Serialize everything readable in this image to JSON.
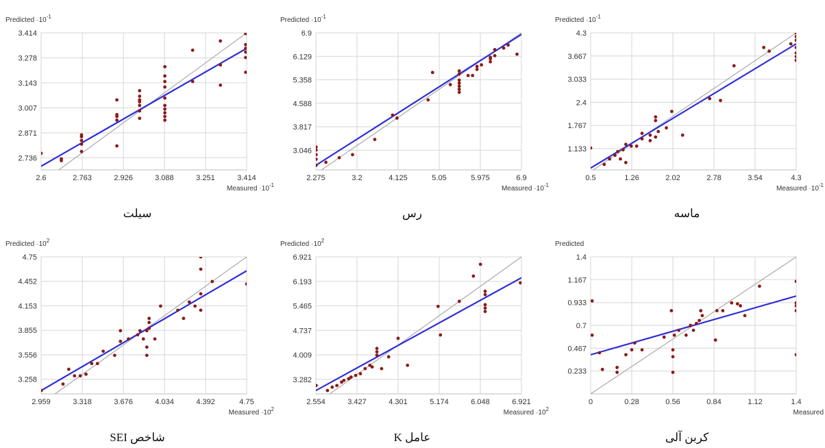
{
  "chart_data": [
    {
      "type": "scatter",
      "caption": "سیلت",
      "xlabel": "Measured",
      "xlabel_exp": "-1",
      "ylabel": "Predicted",
      "ylabel_exp": "-1",
      "xlim": [
        2.6,
        3.414
      ],
      "ylim": [
        2.67,
        3.414
      ],
      "x_ticks": [
        2.6,
        2.763,
        2.926,
        3.088,
        3.251,
        3.414
      ],
      "x_tick_labels": [
        "2.6",
        "2.763",
        "2.926",
        "3.088",
        "3.251",
        "3.414"
      ],
      "y_ticks": [
        2.736,
        2.871,
        3.007,
        3.143,
        3.278,
        3.414
      ],
      "y_tick_labels": [
        "2.736",
        "2.871",
        "3.007",
        "3.143",
        "3.278",
        "3.414"
      ],
      "fit_line": [
        [
          2.6,
          2.69
        ],
        [
          3.414,
          3.33
        ]
      ],
      "points": [
        [
          2.6,
          2.76
        ],
        [
          2.68,
          2.72
        ],
        [
          2.68,
          2.73
        ],
        [
          2.76,
          2.77
        ],
        [
          2.76,
          2.81
        ],
        [
          2.76,
          2.83
        ],
        [
          2.76,
          2.85
        ],
        [
          2.76,
          2.86
        ],
        [
          2.9,
          2.8
        ],
        [
          2.9,
          2.94
        ],
        [
          2.9,
          2.96
        ],
        [
          2.9,
          2.97
        ],
        [
          2.9,
          3.05
        ],
        [
          2.99,
          2.95
        ],
        [
          2.99,
          2.99
        ],
        [
          2.99,
          3.02
        ],
        [
          2.99,
          3.04
        ],
        [
          2.99,
          3.05
        ],
        [
          2.99,
          3.07
        ],
        [
          2.99,
          3.1
        ],
        [
          3.09,
          2.94
        ],
        [
          3.09,
          2.96
        ],
        [
          3.09,
          2.98
        ],
        [
          3.09,
          3.0
        ],
        [
          3.09,
          3.02
        ],
        [
          3.09,
          3.06
        ],
        [
          3.09,
          3.12
        ],
        [
          3.09,
          3.15
        ],
        [
          3.09,
          3.18
        ],
        [
          3.09,
          3.23
        ],
        [
          3.2,
          3.15
        ],
        [
          3.2,
          3.32
        ],
        [
          3.31,
          3.13
        ],
        [
          3.31,
          3.24
        ],
        [
          3.31,
          3.37
        ],
        [
          3.41,
          3.2
        ],
        [
          3.41,
          3.28
        ],
        [
          3.41,
          3.31
        ],
        [
          3.41,
          3.33
        ],
        [
          3.41,
          3.35
        ],
        [
          3.41,
          3.41
        ]
      ]
    },
    {
      "type": "scatter",
      "caption": "رس",
      "xlabel": "Measured",
      "xlabel_exp": "-1",
      "ylabel": "Predicted",
      "ylabel_exp": "-1",
      "xlim": [
        2.275,
        6.9
      ],
      "ylim": [
        2.4,
        6.9
      ],
      "x_ticks": [
        2.275,
        3.2,
        4.125,
        5.05,
        5.975,
        6.9
      ],
      "x_tick_labels": [
        "2.275",
        "3.2",
        "4.125",
        "5.05",
        "5.975",
        "6.9"
      ],
      "y_ticks": [
        3.046,
        3.817,
        4.588,
        5.358,
        6.129,
        6.9
      ],
      "y_tick_labels": [
        "3.046",
        "3.817",
        "4.588",
        "5.358",
        "6.129",
        "6.9"
      ],
      "fit_line": [
        [
          2.275,
          2.55
        ],
        [
          6.9,
          6.85
        ]
      ],
      "points": [
        [
          2.28,
          2.55
        ],
        [
          2.28,
          2.75
        ],
        [
          2.28,
          2.9
        ],
        [
          2.28,
          3.05
        ],
        [
          2.28,
          3.15
        ],
        [
          2.5,
          2.65
        ],
        [
          2.8,
          2.8
        ],
        [
          3.1,
          2.9
        ],
        [
          3.6,
          3.4
        ],
        [
          4.0,
          4.2
        ],
        [
          4.1,
          4.1
        ],
        [
          4.8,
          4.7
        ],
        [
          4.9,
          5.6
        ],
        [
          5.3,
          5.2
        ],
        [
          5.5,
          4.95
        ],
        [
          5.5,
          5.05
        ],
        [
          5.5,
          5.15
        ],
        [
          5.5,
          5.25
        ],
        [
          5.5,
          5.35
        ],
        [
          5.5,
          5.55
        ],
        [
          5.5,
          5.65
        ],
        [
          5.7,
          5.5
        ],
        [
          5.8,
          5.5
        ],
        [
          5.9,
          5.7
        ],
        [
          5.9,
          5.8
        ],
        [
          6.0,
          5.85
        ],
        [
          6.2,
          5.95
        ],
        [
          6.2,
          6.05
        ],
        [
          6.2,
          6.1
        ],
        [
          6.3,
          6.15
        ],
        [
          6.3,
          6.35
        ],
        [
          6.5,
          6.4
        ],
        [
          6.6,
          6.5
        ],
        [
          6.8,
          6.2
        ]
      ]
    },
    {
      "type": "scatter",
      "caption": "ماسه",
      "xlabel": "Measured",
      "xlabel_exp": "-1",
      "ylabel": "Predicted",
      "ylabel_exp": "-1",
      "xlim": [
        0.5,
        4.3
      ],
      "ylim": [
        0.55,
        4.3
      ],
      "x_ticks": [
        0.5,
        1.26,
        2.02,
        2.78,
        3.54,
        4.3
      ],
      "x_tick_labels": [
        "0.5",
        "1.26",
        "2.02",
        "2.78",
        "3.54",
        "4.3"
      ],
      "y_ticks": [
        1.133,
        1.767,
        2.4,
        3.033,
        3.667,
        4.3
      ],
      "y_tick_labels": [
        "1.133",
        "1.767",
        "2.4",
        "3.033",
        "3.667",
        "4.3"
      ],
      "fit_line": [
        [
          0.5,
          0.6
        ],
        [
          4.3,
          4.0
        ]
      ],
      "points": [
        [
          0.5,
          1.15
        ],
        [
          0.75,
          0.7
        ],
        [
          0.85,
          0.85
        ],
        [
          0.95,
          0.95
        ],
        [
          1.0,
          1.05
        ],
        [
          1.05,
          0.85
        ],
        [
          1.1,
          1.1
        ],
        [
          1.15,
          1.25
        ],
        [
          1.15,
          0.75
        ],
        [
          1.25,
          1.2
        ],
        [
          1.35,
          1.2
        ],
        [
          1.45,
          1.4
        ],
        [
          1.45,
          1.55
        ],
        [
          1.6,
          1.35
        ],
        [
          1.6,
          1.5
        ],
        [
          1.7,
          1.45
        ],
        [
          1.7,
          1.9
        ],
        [
          1.7,
          2.0
        ],
        [
          1.75,
          1.6
        ],
        [
          1.9,
          1.7
        ],
        [
          2.0,
          2.15
        ],
        [
          2.2,
          1.5
        ],
        [
          2.7,
          2.5
        ],
        [
          2.9,
          2.45
        ],
        [
          3.15,
          3.4
        ],
        [
          3.7,
          3.9
        ],
        [
          3.8,
          3.8
        ],
        [
          4.2,
          4.0
        ],
        [
          4.3,
          3.55
        ],
        [
          4.3,
          3.65
        ],
        [
          4.3,
          3.75
        ],
        [
          4.3,
          3.9
        ],
        [
          4.3,
          4.1
        ],
        [
          4.3,
          4.2
        ],
        [
          4.3,
          4.3
        ]
      ]
    },
    {
      "type": "scatter",
      "caption": "شاخص SEI",
      "xlabel": "Measured",
      "xlabel_exp": "2",
      "ylabel": "Predicted",
      "ylabel_exp": "2",
      "xlim": [
        2.959,
        4.75
      ],
      "ylim": [
        3.08,
        4.75
      ],
      "x_ticks": [
        2.959,
        3.318,
        3.676,
        4.034,
        4.392,
        4.75
      ],
      "x_tick_labels": [
        "2.959",
        "3.318",
        "3.676",
        "4.034",
        "4.392",
        "4.75"
      ],
      "y_ticks": [
        3.258,
        3.556,
        3.855,
        4.153,
        4.452,
        4.75
      ],
      "y_tick_labels": [
        "3.258",
        "3.556",
        "3.855",
        "4.153",
        "4.452",
        "4.75"
      ],
      "fit_line": [
        [
          2.959,
          3.12
        ],
        [
          4.75,
          4.58
        ]
      ],
      "points": [
        [
          2.96,
          3.12
        ],
        [
          3.15,
          3.2
        ],
        [
          3.2,
          3.38
        ],
        [
          3.25,
          3.3
        ],
        [
          3.3,
          3.3
        ],
        [
          3.35,
          3.32
        ],
        [
          3.4,
          3.45
        ],
        [
          3.45,
          3.45
        ],
        [
          3.5,
          3.6
        ],
        [
          3.6,
          3.55
        ],
        [
          3.65,
          3.72
        ],
        [
          3.65,
          3.85
        ],
        [
          3.72,
          3.75
        ],
        [
          3.8,
          3.8
        ],
        [
          3.82,
          3.85
        ],
        [
          3.85,
          3.75
        ],
        [
          3.88,
          3.55
        ],
        [
          3.88,
          3.65
        ],
        [
          3.88,
          3.85
        ],
        [
          3.9,
          3.88
        ],
        [
          3.9,
          3.95
        ],
        [
          3.9,
          4.0
        ],
        [
          3.95,
          3.75
        ],
        [
          4.0,
          4.15
        ],
        [
          4.15,
          4.1
        ],
        [
          4.2,
          4.0
        ],
        [
          4.25,
          4.2
        ],
        [
          4.3,
          4.15
        ],
        [
          4.35,
          4.1
        ],
        [
          4.35,
          4.3
        ],
        [
          4.35,
          4.6
        ],
        [
          4.35,
          4.75
        ],
        [
          4.45,
          4.45
        ],
        [
          4.75,
          4.42
        ]
      ]
    },
    {
      "type": "scatter",
      "caption": "عامل K",
      "xlabel": "Measured",
      "xlabel_exp": "2",
      "ylabel": "Predicted",
      "ylabel_exp": "2",
      "xlim": [
        2.554,
        6.921
      ],
      "ylim": [
        2.85,
        6.921
      ],
      "x_ticks": [
        2.554,
        3.427,
        4.301,
        5.174,
        6.048,
        6.921
      ],
      "x_tick_labels": [
        "2.554",
        "3.427",
        "4.301",
        "5.174",
        "6.048",
        "6.921"
      ],
      "y_ticks": [
        3.282,
        4.009,
        4.737,
        5.465,
        6.193,
        6.921
      ],
      "y_tick_labels": [
        "3.282",
        "4.009",
        "4.737",
        "5.465",
        "6.193",
        "6.921"
      ],
      "fit_line": [
        [
          2.554,
          2.95
        ],
        [
          6.921,
          6.3
        ]
      ],
      "points": [
        [
          2.56,
          3.1
        ],
        [
          2.8,
          2.95
        ],
        [
          2.9,
          3.05
        ],
        [
          3.0,
          3.1
        ],
        [
          3.1,
          3.2
        ],
        [
          3.15,
          3.25
        ],
        [
          3.25,
          3.3
        ],
        [
          3.3,
          3.35
        ],
        [
          3.4,
          3.4
        ],
        [
          3.5,
          3.45
        ],
        [
          3.6,
          3.6
        ],
        [
          3.7,
          3.7
        ],
        [
          3.75,
          3.65
        ],
        [
          3.85,
          4.0
        ],
        [
          3.85,
          4.1
        ],
        [
          3.85,
          4.2
        ],
        [
          3.95,
          3.6
        ],
        [
          4.1,
          3.95
        ],
        [
          4.3,
          4.5
        ],
        [
          4.5,
          3.7
        ],
        [
          5.15,
          5.45
        ],
        [
          5.2,
          4.6
        ],
        [
          5.6,
          5.6
        ],
        [
          5.9,
          6.35
        ],
        [
          6.05,
          6.7
        ],
        [
          6.15,
          5.3
        ],
        [
          6.15,
          5.4
        ],
        [
          6.15,
          5.5
        ],
        [
          6.15,
          5.8
        ],
        [
          6.15,
          5.9
        ],
        [
          6.9,
          6.15
        ]
      ]
    },
    {
      "type": "scatter",
      "caption": "کربن آلی",
      "xlabel": "Measured",
      "xlabel_exp": "",
      "ylabel": "Predicted",
      "ylabel_exp": "",
      "xlim": [
        0,
        1.4
      ],
      "ylim": [
        0,
        1.4
      ],
      "x_ticks": [
        0,
        0.28,
        0.56,
        0.84,
        1.12,
        1.4
      ],
      "x_tick_labels": [
        "0",
        "0.28",
        "0.56",
        "0.84",
        "1.12",
        "1.4"
      ],
      "y_ticks": [
        0.233,
        0.467,
        0.7,
        0.933,
        1.167,
        1.4
      ],
      "y_tick_labels": [
        "0.233",
        "0.467",
        "0.7",
        "0.933",
        "1.167",
        "1.4"
      ],
      "fit_line": [
        [
          0,
          0.4
        ],
        [
          1.4,
          1.0
        ]
      ],
      "points": [
        [
          0.01,
          0.95
        ],
        [
          0.01,
          0.6
        ],
        [
          0.06,
          0.42
        ],
        [
          0.08,
          0.25
        ],
        [
          0.18,
          0.27
        ],
        [
          0.18,
          0.22
        ],
        [
          0.24,
          0.4
        ],
        [
          0.28,
          0.45
        ],
        [
          0.3,
          0.52
        ],
        [
          0.35,
          0.45
        ],
        [
          0.5,
          0.58
        ],
        [
          0.55,
          0.85
        ],
        [
          0.56,
          0.45
        ],
        [
          0.56,
          0.38
        ],
        [
          0.56,
          0.22
        ],
        [
          0.57,
          0.6
        ],
        [
          0.6,
          0.65
        ],
        [
          0.65,
          0.6
        ],
        [
          0.68,
          0.7
        ],
        [
          0.7,
          0.65
        ],
        [
          0.72,
          0.72
        ],
        [
          0.74,
          0.75
        ],
        [
          0.75,
          0.85
        ],
        [
          0.76,
          0.8
        ],
        [
          0.85,
          0.55
        ],
        [
          0.86,
          0.85
        ],
        [
          0.9,
          0.85
        ],
        [
          0.96,
          0.93
        ],
        [
          1.0,
          0.92
        ],
        [
          1.02,
          0.9
        ],
        [
          1.05,
          0.8
        ],
        [
          1.15,
          1.1
        ],
        [
          1.4,
          1.15
        ],
        [
          1.4,
          0.93
        ],
        [
          1.4,
          0.9
        ],
        [
          1.4,
          0.85
        ],
        [
          1.4,
          0.4
        ]
      ]
    }
  ]
}
